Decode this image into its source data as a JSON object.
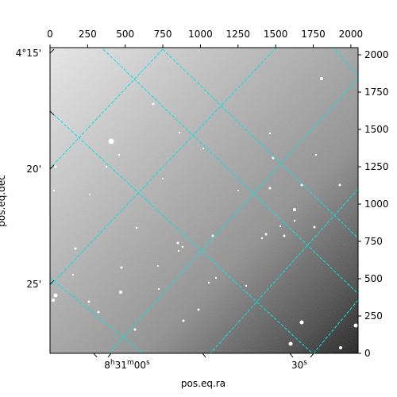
{
  "chart_data": {
    "type": "image",
    "xlabel": "pos.eq.ra",
    "ylabel": "pos.eq.dec",
    "pixel_axes": {
      "x_range": [
        0,
        2048
      ],
      "y_range": [
        0,
        2048
      ],
      "top_ticks": [
        "0",
        "250",
        "500",
        "750",
        "1000",
        "1250",
        "1500",
        "1750",
        "2000"
      ],
      "top_tick_values": [
        0,
        250,
        500,
        750,
        1000,
        1250,
        1500,
        1750,
        2000
      ],
      "right_ticks": [
        "0",
        "250",
        "500",
        "750",
        "1000",
        "1250",
        "1500",
        "1750",
        "2000"
      ],
      "right_tick_values": [
        0,
        250,
        500,
        750,
        1000,
        1250,
        1500,
        1750,
        2000
      ]
    },
    "ra_ticks": [
      {
        "h": "8",
        "m": "31",
        "s": "00",
        "kind": "hms"
      },
      {
        "s": "30",
        "kind": "s"
      }
    ],
    "dec_ticks": [
      "4°15'",
      "20'",
      "25'"
    ],
    "grid": true,
    "grid_color": "#00e5e5",
    "colormap": "gray"
  }
}
